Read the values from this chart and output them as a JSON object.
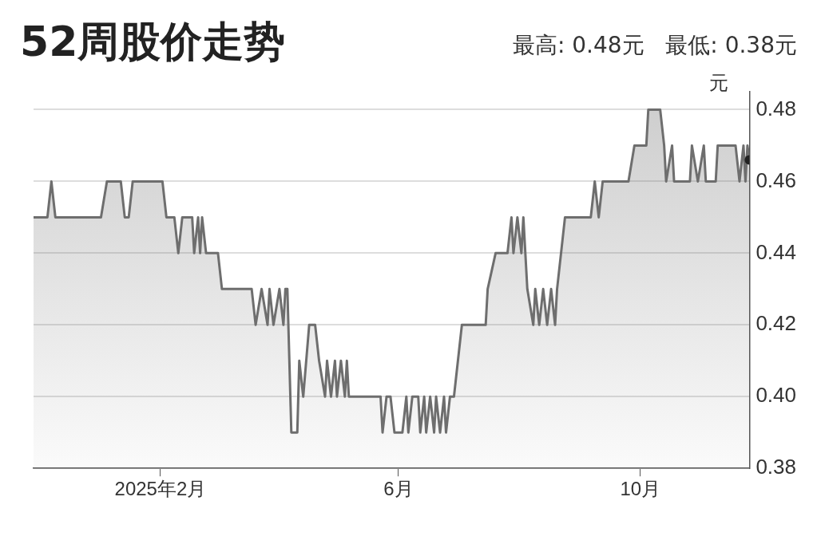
{
  "chart_data": {
    "type": "area",
    "title": "52周股价走势",
    "subtitle": "最高: 0.48元   最低: 0.38元",
    "ylabel": "元",
    "color": "#6e6e6e",
    "x": [
      "2024-11-29",
      "2024-12-06",
      "2024-12-08",
      "2024-12-10",
      "2025-01-02",
      "2025-01-05",
      "2025-01-12",
      "2025-01-14",
      "2025-01-16",
      "2025-01-18",
      "2025-02-02",
      "2025-02-04",
      "2025-02-08",
      "2025-02-10",
      "2025-02-12",
      "2025-02-17",
      "2025-02-18",
      "2025-02-20",
      "2025-02-21",
      "2025-02-22",
      "2025-02-24",
      "2025-03-02",
      "2025-03-04",
      "2025-03-19",
      "2025-03-21",
      "2025-03-24",
      "2025-03-27",
      "2025-03-28",
      "2025-03-30",
      "2025-04-02",
      "2025-04-04",
      "2025-04-05",
      "2025-04-06",
      "2025-04-08",
      "2025-04-11",
      "2025-04-12",
      "2025-04-14",
      "2025-04-17",
      "2025-04-20",
      "2025-04-22",
      "2025-04-25",
      "2025-04-26",
      "2025-04-28",
      "2025-04-30",
      "2025-05-01",
      "2025-05-03",
      "2025-05-05",
      "2025-05-06",
      "2025-05-07",
      "2025-05-23",
      "2025-05-24",
      "2025-05-26",
      "2025-05-28",
      "2025-05-30",
      "2025-06-03",
      "2025-06-05",
      "2025-06-06",
      "2025-06-08",
      "2025-06-11",
      "2025-06-12",
      "2025-06-14",
      "2025-06-15",
      "2025-06-17",
      "2025-06-19",
      "2025-06-20",
      "2025-06-22",
      "2025-06-24",
      "2025-06-25",
      "2025-06-27",
      "2025-06-29",
      "2025-07-01",
      "2025-07-03",
      "2025-07-15",
      "2025-07-16",
      "2025-07-20",
      "2025-07-26",
      "2025-07-28",
      "2025-07-29",
      "2025-07-31",
      "2025-08-02",
      "2025-08-03",
      "2025-08-05",
      "2025-08-08",
      "2025-08-09",
      "2025-08-11",
      "2025-08-13",
      "2025-08-15",
      "2025-08-17",
      "2025-08-19",
      "2025-08-20",
      "2025-08-22",
      "2025-08-24",
      "2025-09-06",
      "2025-09-08",
      "2025-09-10",
      "2025-09-12",
      "2025-09-25",
      "2025-09-28",
      "2025-10-04",
      "2025-10-05",
      "2025-10-11",
      "2025-10-13",
      "2025-10-14",
      "2025-10-17",
      "2025-10-18",
      "2025-10-26",
      "2025-10-27",
      "2025-10-30",
      "2025-11-02",
      "2025-11-03",
      "2025-11-08",
      "2025-11-09",
      "2025-11-18",
      "2025-11-20",
      "2025-11-22",
      "2025-11-23",
      "2025-11-24",
      "2025-11-25"
    ],
    "values": [
      0.45,
      0.45,
      0.46,
      0.45,
      0.45,
      0.46,
      0.46,
      0.45,
      0.45,
      0.46,
      0.46,
      0.45,
      0.45,
      0.44,
      0.45,
      0.45,
      0.44,
      0.45,
      0.44,
      0.45,
      0.44,
      0.44,
      0.43,
      0.43,
      0.42,
      0.43,
      0.42,
      0.43,
      0.42,
      0.43,
      0.42,
      0.43,
      0.43,
      0.39,
      0.39,
      0.41,
      0.4,
      0.42,
      0.42,
      0.41,
      0.4,
      0.41,
      0.4,
      0.41,
      0.4,
      0.41,
      0.4,
      0.41,
      0.4,
      0.4,
      0.39,
      0.4,
      0.4,
      0.39,
      0.39,
      0.4,
      0.39,
      0.4,
      0.4,
      0.39,
      0.4,
      0.39,
      0.4,
      0.39,
      0.4,
      0.39,
      0.4,
      0.39,
      0.4,
      0.4,
      0.41,
      0.42,
      0.42,
      0.43,
      0.44,
      0.44,
      0.45,
      0.44,
      0.45,
      0.44,
      0.45,
      0.43,
      0.42,
      0.43,
      0.42,
      0.43,
      0.42,
      0.43,
      0.42,
      0.43,
      0.44,
      0.45,
      0.45,
      0.46,
      0.45,
      0.46,
      0.46,
      0.47,
      0.47,
      0.48,
      0.48,
      0.47,
      0.46,
      0.47,
      0.46,
      0.46,
      0.47,
      0.46,
      0.47,
      0.46,
      0.46,
      0.47,
      0.47,
      0.46,
      0.47,
      0.46,
      0.47,
      0.466
    ],
    "xlim": [
      "2024-11-29",
      "2025-11-25"
    ],
    "xticks": [
      {
        "value": "2025-02-01",
        "label": "2025年2月"
      },
      {
        "value": "2025-06-01",
        "label": "6月"
      },
      {
        "value": "2025-10-01",
        "label": "10月"
      }
    ],
    "ylim": [
      0.38,
      0.485
    ],
    "yticks": [
      0.38,
      {
        "value": 0.4,
        "label": "0.40"
      },
      0.42,
      0.44,
      0.46,
      0.48
    ],
    "grid": "y"
  }
}
